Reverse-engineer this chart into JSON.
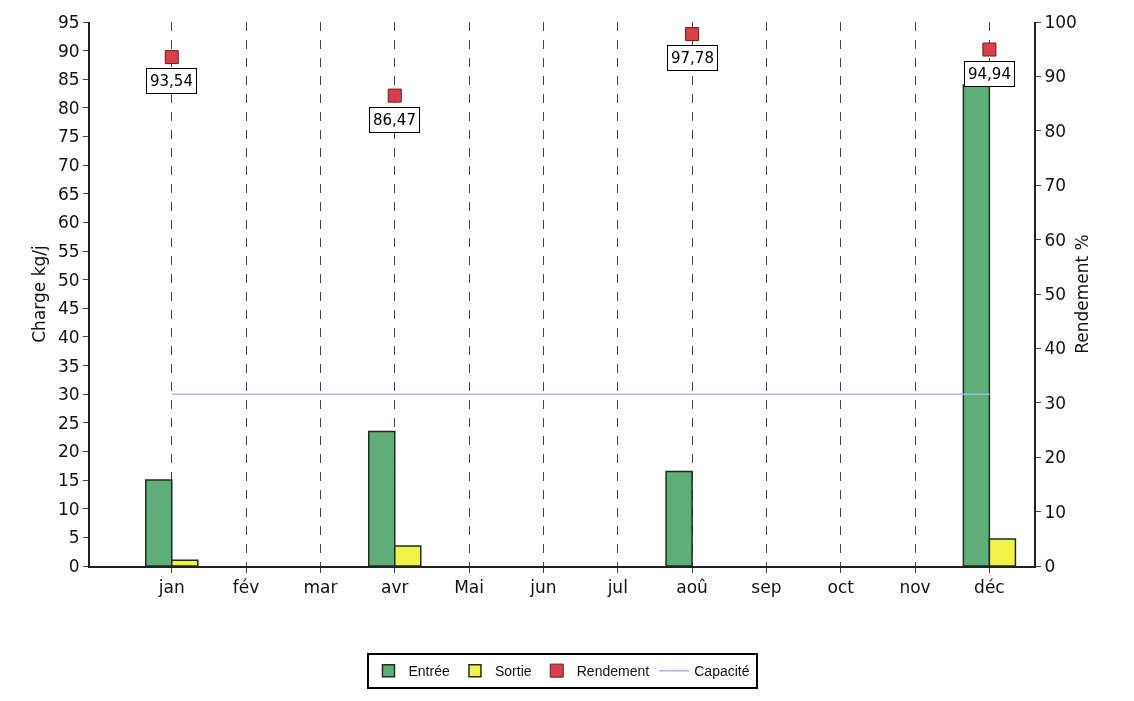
{
  "chart_data": {
    "type": "bar",
    "ylabel": "Charge kg/j",
    "y2label": "Rendement %",
    "categories": [
      "jan",
      "fév",
      "mar",
      "avr",
      "Mai",
      "jun",
      "jul",
      "aoû",
      "sep",
      "oct",
      "nov",
      "déc"
    ],
    "series": [
      {
        "name": "Entrée",
        "color": "#5fae78",
        "values": [
          15,
          null,
          null,
          23.5,
          null,
          null,
          null,
          16.5,
          null,
          null,
          null,
          84
        ]
      },
      {
        "name": "Sortie",
        "color": "#f2f24a",
        "values": [
          1,
          null,
          null,
          3.5,
          null,
          null,
          null,
          null,
          null,
          null,
          null,
          4.7
        ]
      },
      {
        "name": "Rendement",
        "type": "scatter",
        "axis": "y2",
        "marker": "square",
        "color": "#d9404a",
        "values": [
          93.54,
          null,
          null,
          86.47,
          null,
          null,
          null,
          97.78,
          null,
          null,
          null,
          94.94
        ],
        "value_labels": [
          "93,54",
          null,
          null,
          "86,47",
          null,
          null,
          null,
          "97,78",
          null,
          null,
          null,
          "94,94"
        ]
      },
      {
        "name": "Capacité",
        "type": "line",
        "color": "#aab4e6",
        "line_style": "solid",
        "values": [
          30,
          30,
          30,
          30,
          30,
          30,
          30,
          30,
          30,
          30,
          30,
          30
        ]
      }
    ],
    "ylim": [
      0,
      95
    ],
    "yticks": [
      0,
      5,
      10,
      15,
      20,
      25,
      30,
      35,
      40,
      45,
      50,
      55,
      60,
      65,
      70,
      75,
      80,
      85,
      90,
      95
    ],
    "y2lim": [
      0,
      100
    ],
    "y2ticks": [
      0,
      10,
      20,
      30,
      40,
      50,
      60,
      70,
      80,
      90,
      100
    ],
    "grid": "x",
    "legend": "bottom"
  }
}
